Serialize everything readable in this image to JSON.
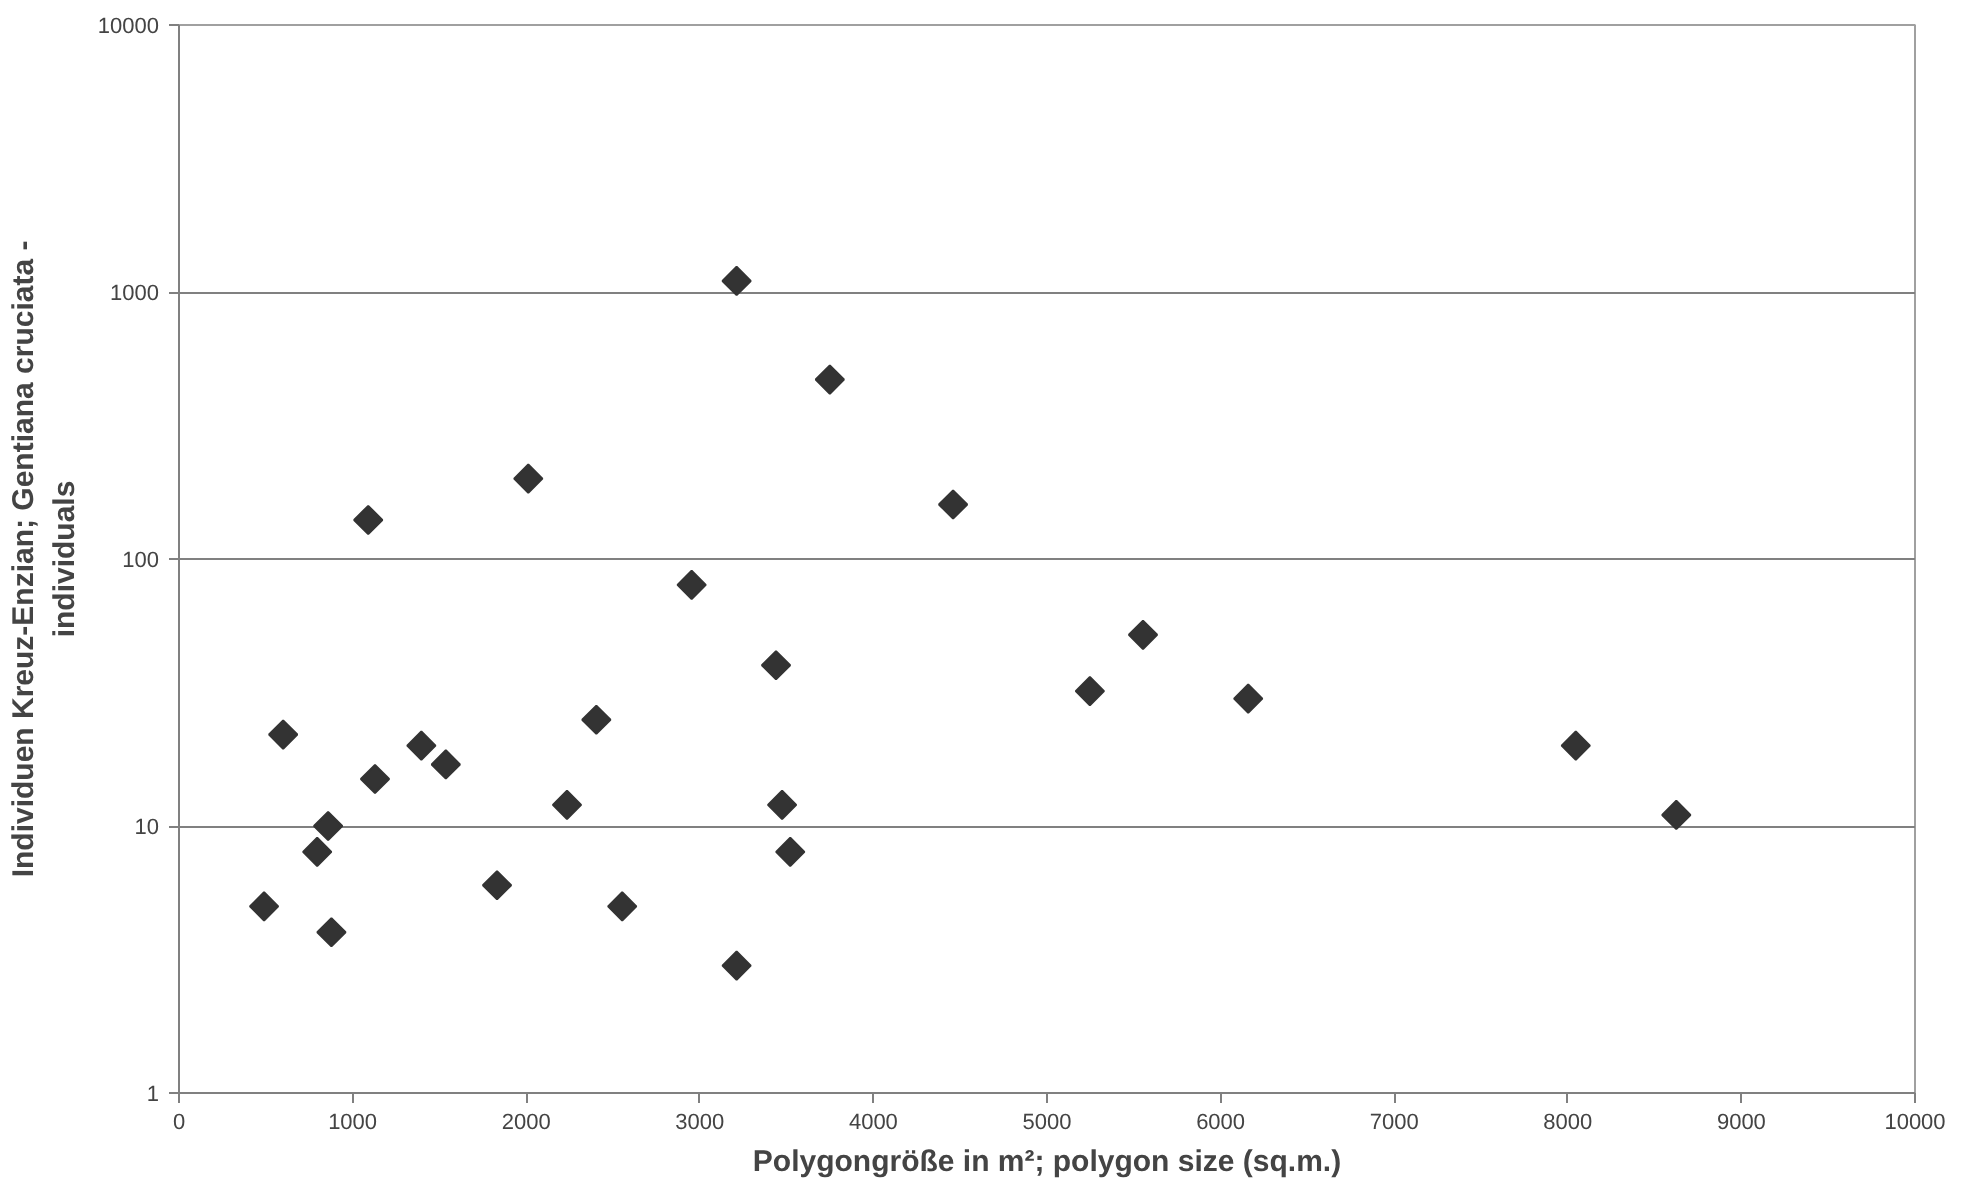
{
  "chart_data": {
    "type": "scatter",
    "xlabel": "Polygongröße in m²; polygon size (sq.m.)",
    "ylabel": "Individuen Kreuz-Enzian; Gentiana cruciata -\nindividuals",
    "x": [
      3212,
      3749,
      2012,
      1090,
      4459,
      2953,
      3439,
      2404,
      600,
      1396,
      1537,
      1129,
      2235,
      3474,
      859,
      796,
      3521,
      1832,
      490,
      2553,
      878,
      3212,
      5247,
      5553,
      6159,
      8046,
      8625
    ],
    "series": [
      {
        "color": "#333333",
        "values": [
          1100,
          470,
          200,
          140,
          160,
          80,
          40,
          25,
          22,
          20,
          17,
          15,
          12,
          12,
          10,
          8,
          8,
          6,
          5,
          5,
          4,
          3,
          32,
          52,
          30,
          20,
          11
        ]
      }
    ],
    "xlim": [
      0,
      10000
    ],
    "xticks": [
      0,
      1000,
      2000,
      3000,
      4000,
      5000,
      6000,
      7000,
      8000,
      9000,
      10000
    ],
    "ylim": [
      1,
      10000
    ],
    "yticks": [
      1,
      10,
      100,
      1000,
      10000
    ],
    "log": "y",
    "grid": "y",
    "marker": "diamond"
  }
}
